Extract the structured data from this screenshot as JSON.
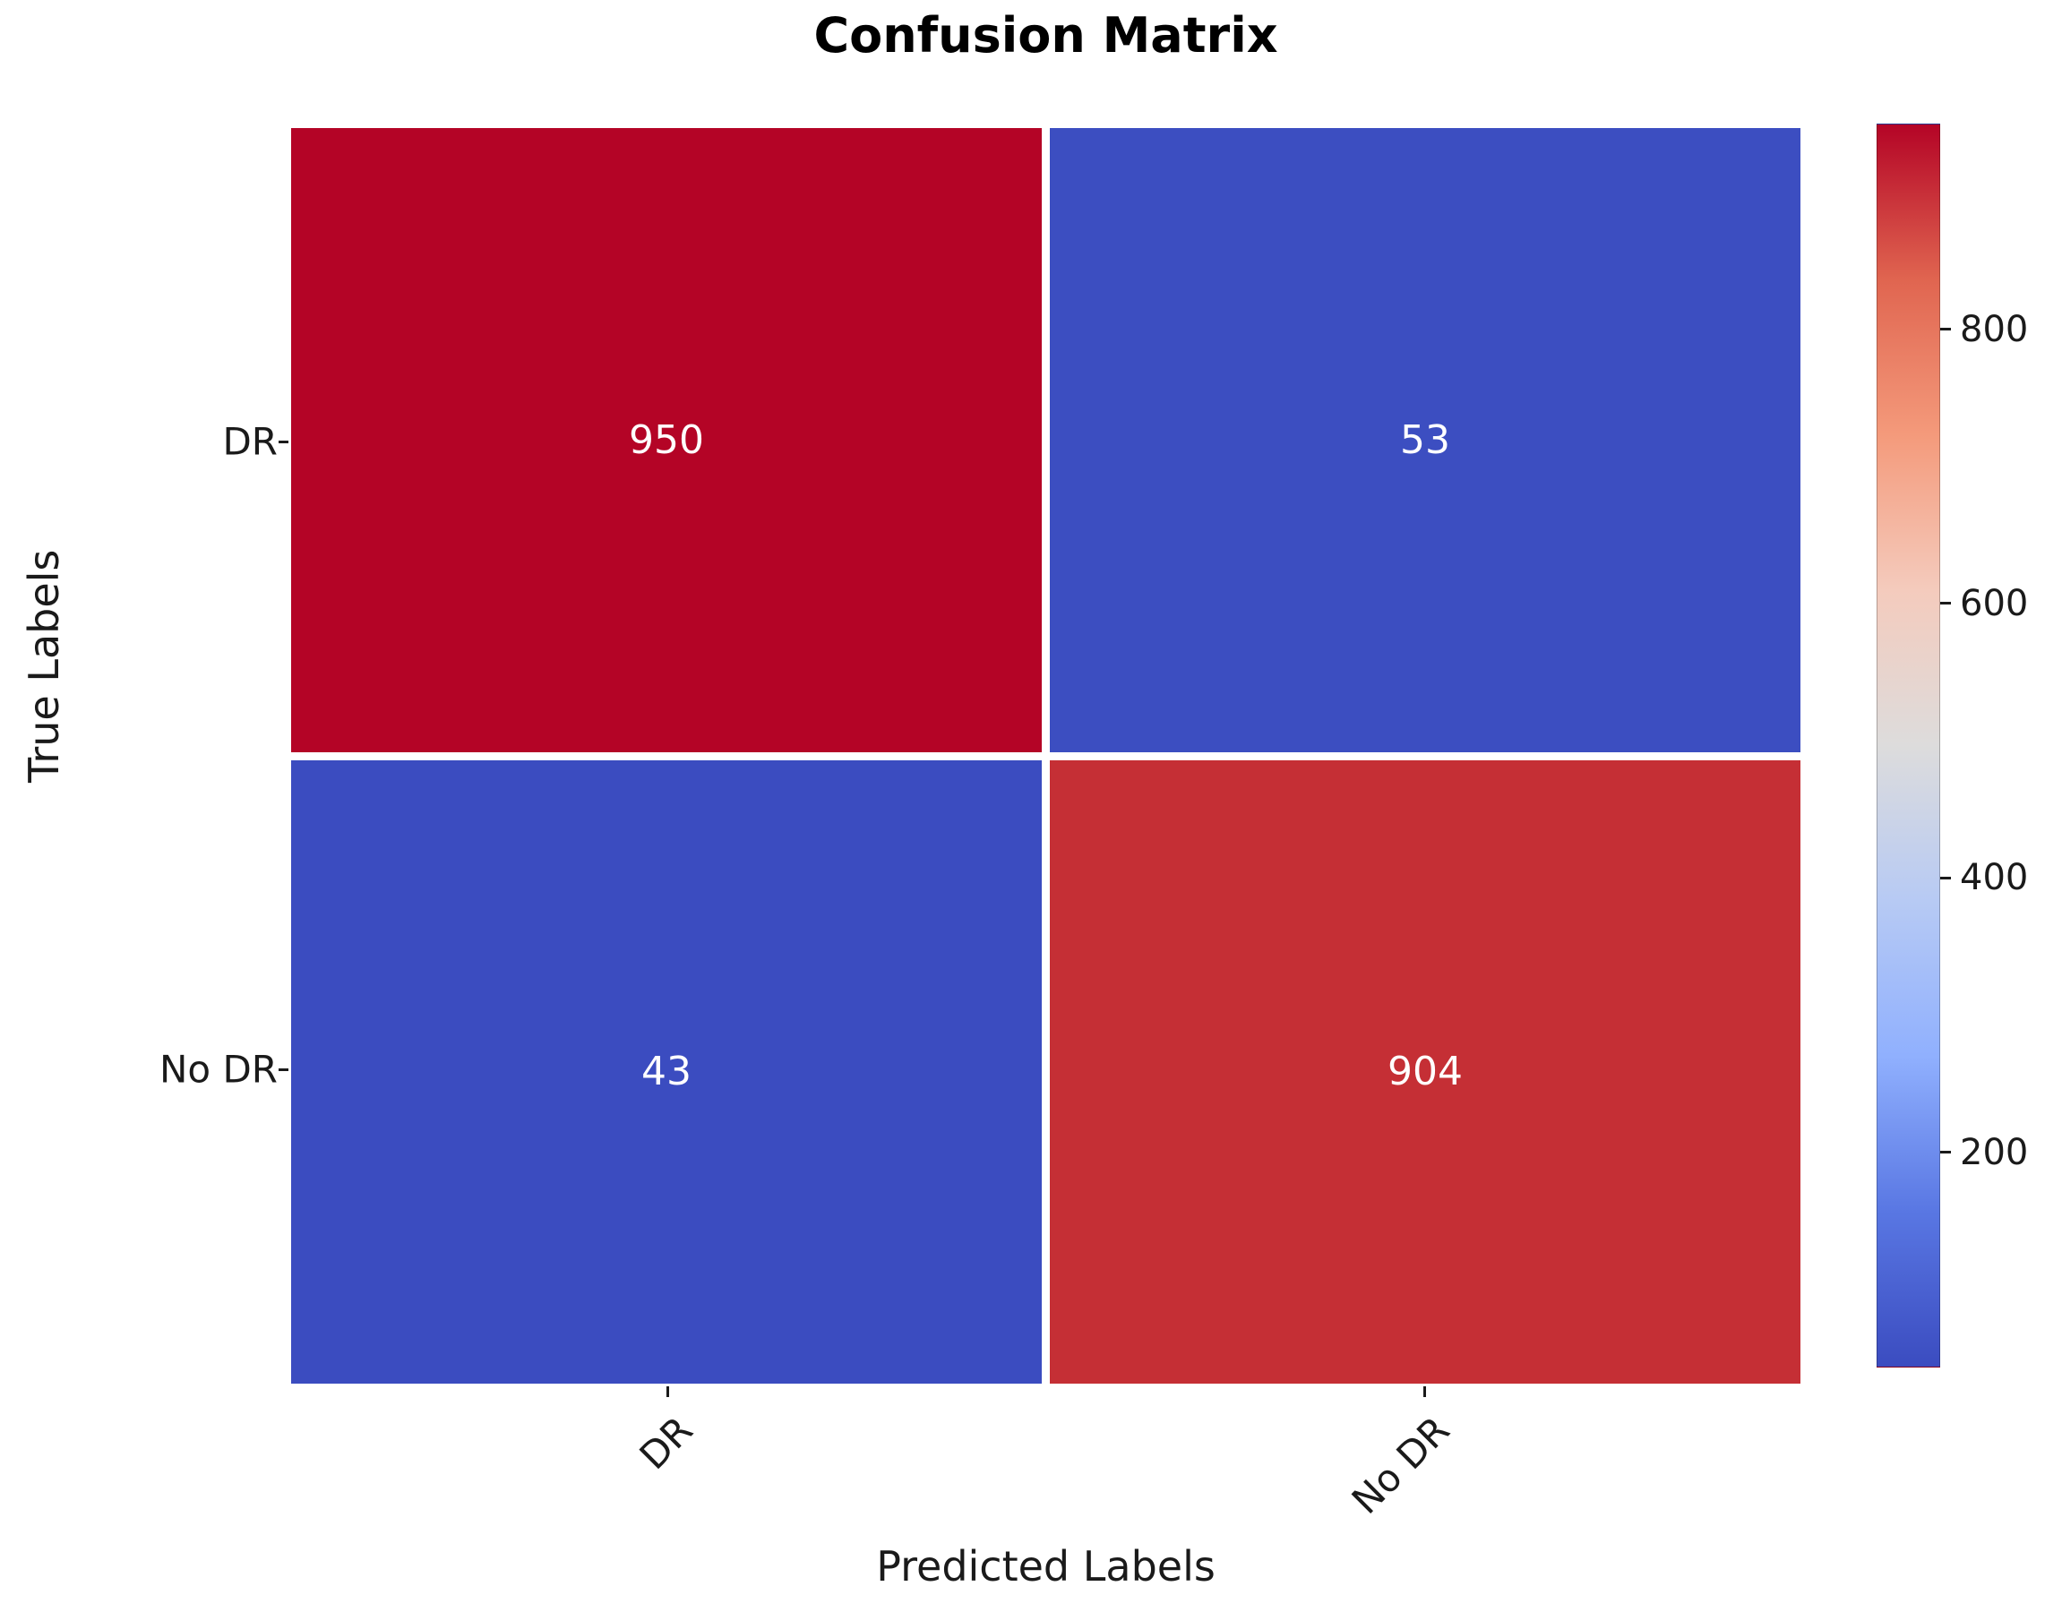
{
  "chart_data": {
    "type": "heatmap",
    "title": "Confusion Matrix",
    "xlabel": "Predicted Labels",
    "ylabel": "True Labels",
    "x_categories": [
      "DR",
      "No DR"
    ],
    "y_categories": [
      "DR",
      "No DR"
    ],
    "matrix": [
      [
        950,
        53
      ],
      [
        43,
        904
      ]
    ],
    "vmin": 43,
    "vmax": 950,
    "colormap": "coolwarm",
    "grid": false,
    "legend_position": "right-colorbar",
    "colorbar_ticks": [
      200,
      400,
      600,
      800
    ],
    "colorbar_gradient_top_to_bottom": [
      "#b40426",
      "#e06550",
      "#f49a7b",
      "#f4cbbd",
      "#dddcdc",
      "#b7caf4",
      "#90b0fe",
      "#5977e3",
      "#3b4cc0"
    ],
    "cell_colors": [
      [
        "#b40426",
        "#3c4ec1"
      ],
      [
        "#3b4cc0",
        "#c52f35"
      ]
    ],
    "cell_text_color": "#ffffff",
    "xtick_rotation_deg": 45
  }
}
